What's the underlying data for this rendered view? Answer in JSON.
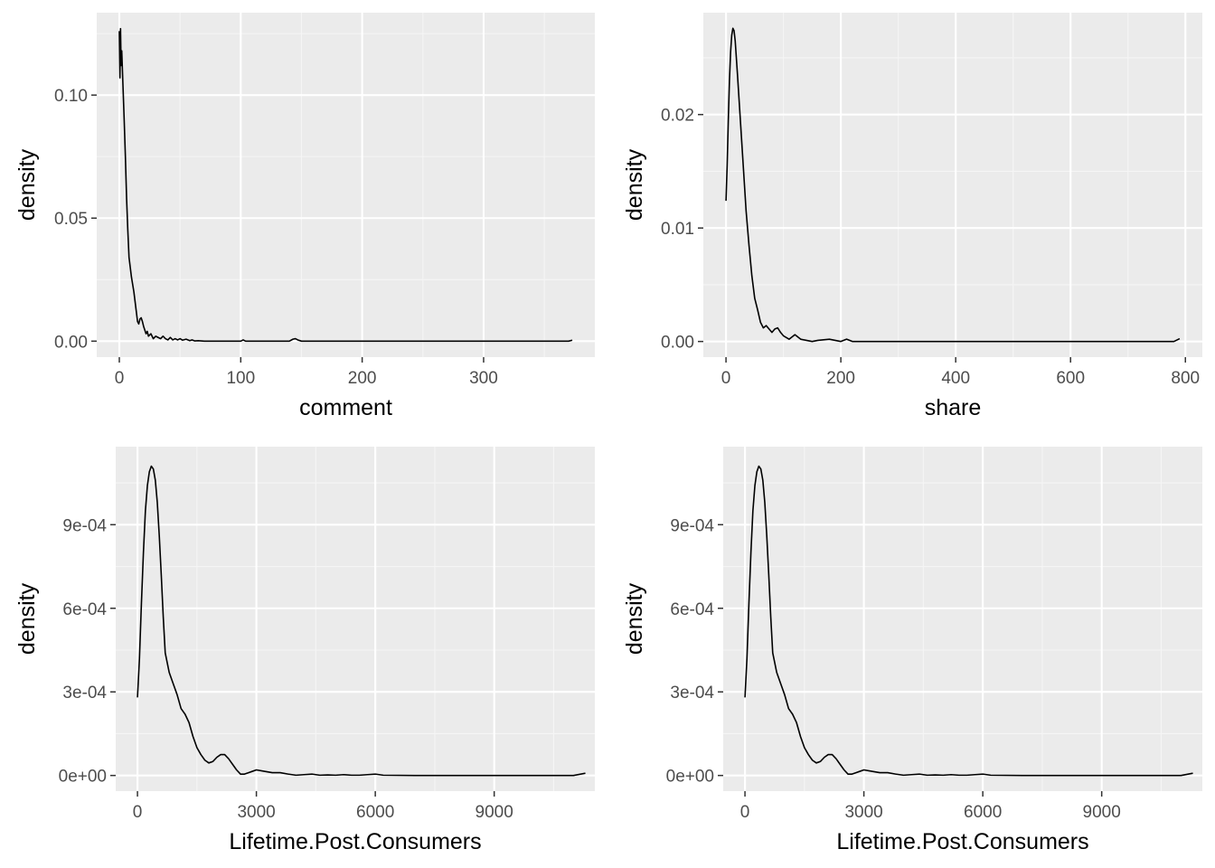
{
  "chart_data": [
    {
      "type": "area",
      "xlabel": "comment",
      "ylabel": "density",
      "xlim": [
        -18.6,
        391.6
      ],
      "ylim": [
        -0.0065,
        0.1335
      ],
      "x_breaks": [
        0,
        100,
        200,
        300
      ],
      "x_tick_labels": [
        "0",
        "100",
        "200",
        "300"
      ],
      "y_breaks": [
        0.0,
        0.05,
        0.1
      ],
      "y_tick_labels": [
        "0.00",
        "0.05",
        "0.10"
      ],
      "grid": true,
      "series": [
        {
          "x": [
            0,
            0.5,
            1,
            1.5,
            2,
            3,
            4,
            5,
            6,
            7,
            8,
            10,
            12,
            14,
            15,
            16,
            17,
            18,
            19,
            20,
            22,
            23,
            24,
            26,
            28,
            30,
            32,
            34,
            36,
            38,
            40,
            42,
            44,
            46,
            48,
            50,
            52,
            55,
            58,
            60,
            62,
            65,
            70,
            100,
            102,
            104,
            140,
            143,
            145,
            147,
            150,
            200,
            250,
            300,
            350,
            370,
            373
          ],
          "y": [
            0.126,
            0.107,
            0.127,
            0.112,
            0.118,
            0.104,
            0.09,
            0.075,
            0.058,
            0.045,
            0.034,
            0.026,
            0.02,
            0.012,
            0.008,
            0.007,
            0.009,
            0.0095,
            0.008,
            0.006,
            0.003,
            0.004,
            0.002,
            0.003,
            0.001,
            0.002,
            0.0015,
            0.001,
            0.002,
            0.001,
            0.0005,
            0.0015,
            0.0005,
            0.001,
            0.0005,
            0.001,
            0.0004,
            0.0008,
            0.0002,
            0.0005,
            0.0001,
            0.0002,
            0.0,
            0.0,
            0.0005,
            0.0,
            0.0,
            0.0008,
            0.001,
            0.0005,
            0.0,
            0.0,
            0.0,
            0.0,
            0.0,
            0.0,
            0.0004
          ]
        }
      ]
    },
    {
      "type": "area",
      "xlabel": "share",
      "ylabel": "density",
      "xlim": [
        -39.5,
        829.5
      ],
      "ylim": [
        -0.00138,
        0.02898
      ],
      "x_breaks": [
        0,
        200,
        400,
        600,
        800
      ],
      "x_tick_labels": [
        "0",
        "200",
        "400",
        "600",
        "800"
      ],
      "y_breaks": [
        0.0,
        0.01,
        0.02
      ],
      "y_tick_labels": [
        "0.00",
        "0.01",
        "0.02"
      ],
      "grid": true,
      "series": [
        {
          "x": [
            0,
            2,
            4,
            6,
            8,
            10,
            12,
            14,
            16,
            20,
            25,
            30,
            35,
            40,
            45,
            50,
            55,
            60,
            65,
            70,
            75,
            80,
            85,
            90,
            95,
            100,
            110,
            120,
            130,
            140,
            150,
            160,
            180,
            200,
            210,
            220,
            300,
            400,
            500,
            600,
            700,
            780,
            790
          ],
          "y": [
            0.0124,
            0.0155,
            0.0195,
            0.023,
            0.0255,
            0.027,
            0.0276,
            0.0274,
            0.0265,
            0.0235,
            0.0195,
            0.0155,
            0.0115,
            0.0085,
            0.0058,
            0.0038,
            0.0028,
            0.0017,
            0.0012,
            0.0014,
            0.0011,
            0.0008,
            0.0011,
            0.0012,
            0.0008,
            0.0005,
            0.0002,
            0.0006,
            0.0002,
            0.0001,
            0.0,
            0.0001,
            0.0002,
            0.0,
            0.0002,
            0.0,
            0.0,
            0.0,
            0.0,
            0.0,
            0.0,
            0.0,
            0.00025
          ]
        }
      ]
    },
    {
      "type": "area",
      "xlabel": "Lifetime.Post.Consumers",
      "ylabel": "density",
      "xlim": [
        -549,
        11539
      ],
      "ylim": [
        -5.62e-05,
        0.00118
      ],
      "x_breaks": [
        0,
        3000,
        6000,
        9000
      ],
      "x_tick_labels": [
        "0",
        "3000",
        "6000",
        "9000"
      ],
      "y_breaks": [
        0.0,
        0.0003,
        0.0006,
        0.0009
      ],
      "y_tick_labels": [
        "0e+00",
        "3e-04",
        "6e-04",
        "9e-04"
      ],
      "grid": true,
      "series": [
        {
          "x": [
            0,
            50,
            100,
            150,
            200,
            250,
            300,
            350,
            400,
            450,
            500,
            550,
            600,
            650,
            700,
            800,
            900,
            1000,
            1100,
            1200,
            1300,
            1400,
            1500,
            1600,
            1700,
            1800,
            1900,
            2000,
            2100,
            2200,
            2300,
            2400,
            2500,
            2600,
            2700,
            2800,
            2900,
            3000,
            3200,
            3400,
            3600,
            3800,
            4000,
            4200,
            4400,
            4600,
            4800,
            5000,
            5200,
            5400,
            5600,
            5800,
            6000,
            6200,
            7000,
            8000,
            9000,
            10000,
            11000,
            11300
          ],
          "y": [
            0.00028,
            0.00042,
            0.00062,
            0.0008,
            0.00095,
            0.00104,
            0.00109,
            0.00111,
            0.0011,
            0.00106,
            0.00098,
            0.00086,
            0.00072,
            0.00057,
            0.00044,
            0.00037,
            0.00033,
            0.00029,
            0.00024,
            0.00022,
            0.00019,
            0.00014,
            0.0001,
            7.5e-05,
            5.5e-05,
            4.5e-05,
            5e-05,
            6.5e-05,
            7.5e-05,
            7.5e-05,
            6e-05,
            4e-05,
            2e-05,
            5e-06,
            5e-06,
            1e-05,
            1.5e-05,
            2e-05,
            1.5e-05,
            1e-05,
            1e-05,
            5e-06,
            1e-06,
            3e-06,
            5e-06,
            1e-06,
            2e-06,
            1e-06,
            3e-06,
            1e-06,
            1e-06,
            3e-06,
            5e-06,
            1e-06,
            0.0,
            0.0,
            0.0,
            0.0,
            0.0,
            8e-06
          ]
        }
      ]
    },
    {
      "type": "area",
      "xlabel": "Lifetime.Post.Consumers",
      "ylabel": "density",
      "xlim": [
        -549,
        11539
      ],
      "ylim": [
        -5.62e-05,
        0.00118
      ],
      "x_breaks": [
        0,
        3000,
        6000,
        9000
      ],
      "x_tick_labels": [
        "0",
        "3000",
        "6000",
        "9000"
      ],
      "y_breaks": [
        0.0,
        0.0003,
        0.0006,
        0.0009
      ],
      "y_tick_labels": [
        "0e+00",
        "3e-04",
        "6e-04",
        "9e-04"
      ],
      "grid": true,
      "series": [
        {
          "x": [
            0,
            50,
            100,
            150,
            200,
            250,
            300,
            350,
            400,
            450,
            500,
            550,
            600,
            650,
            700,
            800,
            900,
            1000,
            1100,
            1200,
            1300,
            1400,
            1500,
            1600,
            1700,
            1800,
            1900,
            2000,
            2100,
            2200,
            2300,
            2400,
            2500,
            2600,
            2700,
            2800,
            2900,
            3000,
            3200,
            3400,
            3600,
            3800,
            4000,
            4200,
            4400,
            4600,
            4800,
            5000,
            5200,
            5400,
            5600,
            5800,
            6000,
            6200,
            7000,
            8000,
            9000,
            10000,
            11000,
            11300
          ],
          "y": [
            0.00028,
            0.00042,
            0.00062,
            0.0008,
            0.00095,
            0.00104,
            0.00109,
            0.00111,
            0.0011,
            0.00106,
            0.00098,
            0.00086,
            0.00072,
            0.00057,
            0.00044,
            0.00037,
            0.00033,
            0.00029,
            0.00024,
            0.00022,
            0.00019,
            0.00014,
            0.0001,
            7.5e-05,
            5.5e-05,
            4.5e-05,
            5e-05,
            6.5e-05,
            7.5e-05,
            7.5e-05,
            6e-05,
            4e-05,
            2e-05,
            5e-06,
            5e-06,
            1e-05,
            1.5e-05,
            2e-05,
            1.5e-05,
            1e-05,
            1e-05,
            5e-06,
            1e-06,
            3e-06,
            5e-06,
            1e-06,
            2e-06,
            1e-06,
            3e-06,
            1e-06,
            1e-06,
            3e-06,
            5e-06,
            1e-06,
            0.0,
            0.0,
            0.0,
            0.0,
            0.0,
            8e-06
          ]
        }
      ]
    }
  ],
  "colors": {
    "panel_background": "#ebebeb",
    "major_grid": "#ffffff",
    "minor_grid": "#f5f5f5",
    "density_line": "#000000",
    "tick_text": "#4d4d4d",
    "tick_mark": "#333333",
    "axis_title": "#000000"
  }
}
